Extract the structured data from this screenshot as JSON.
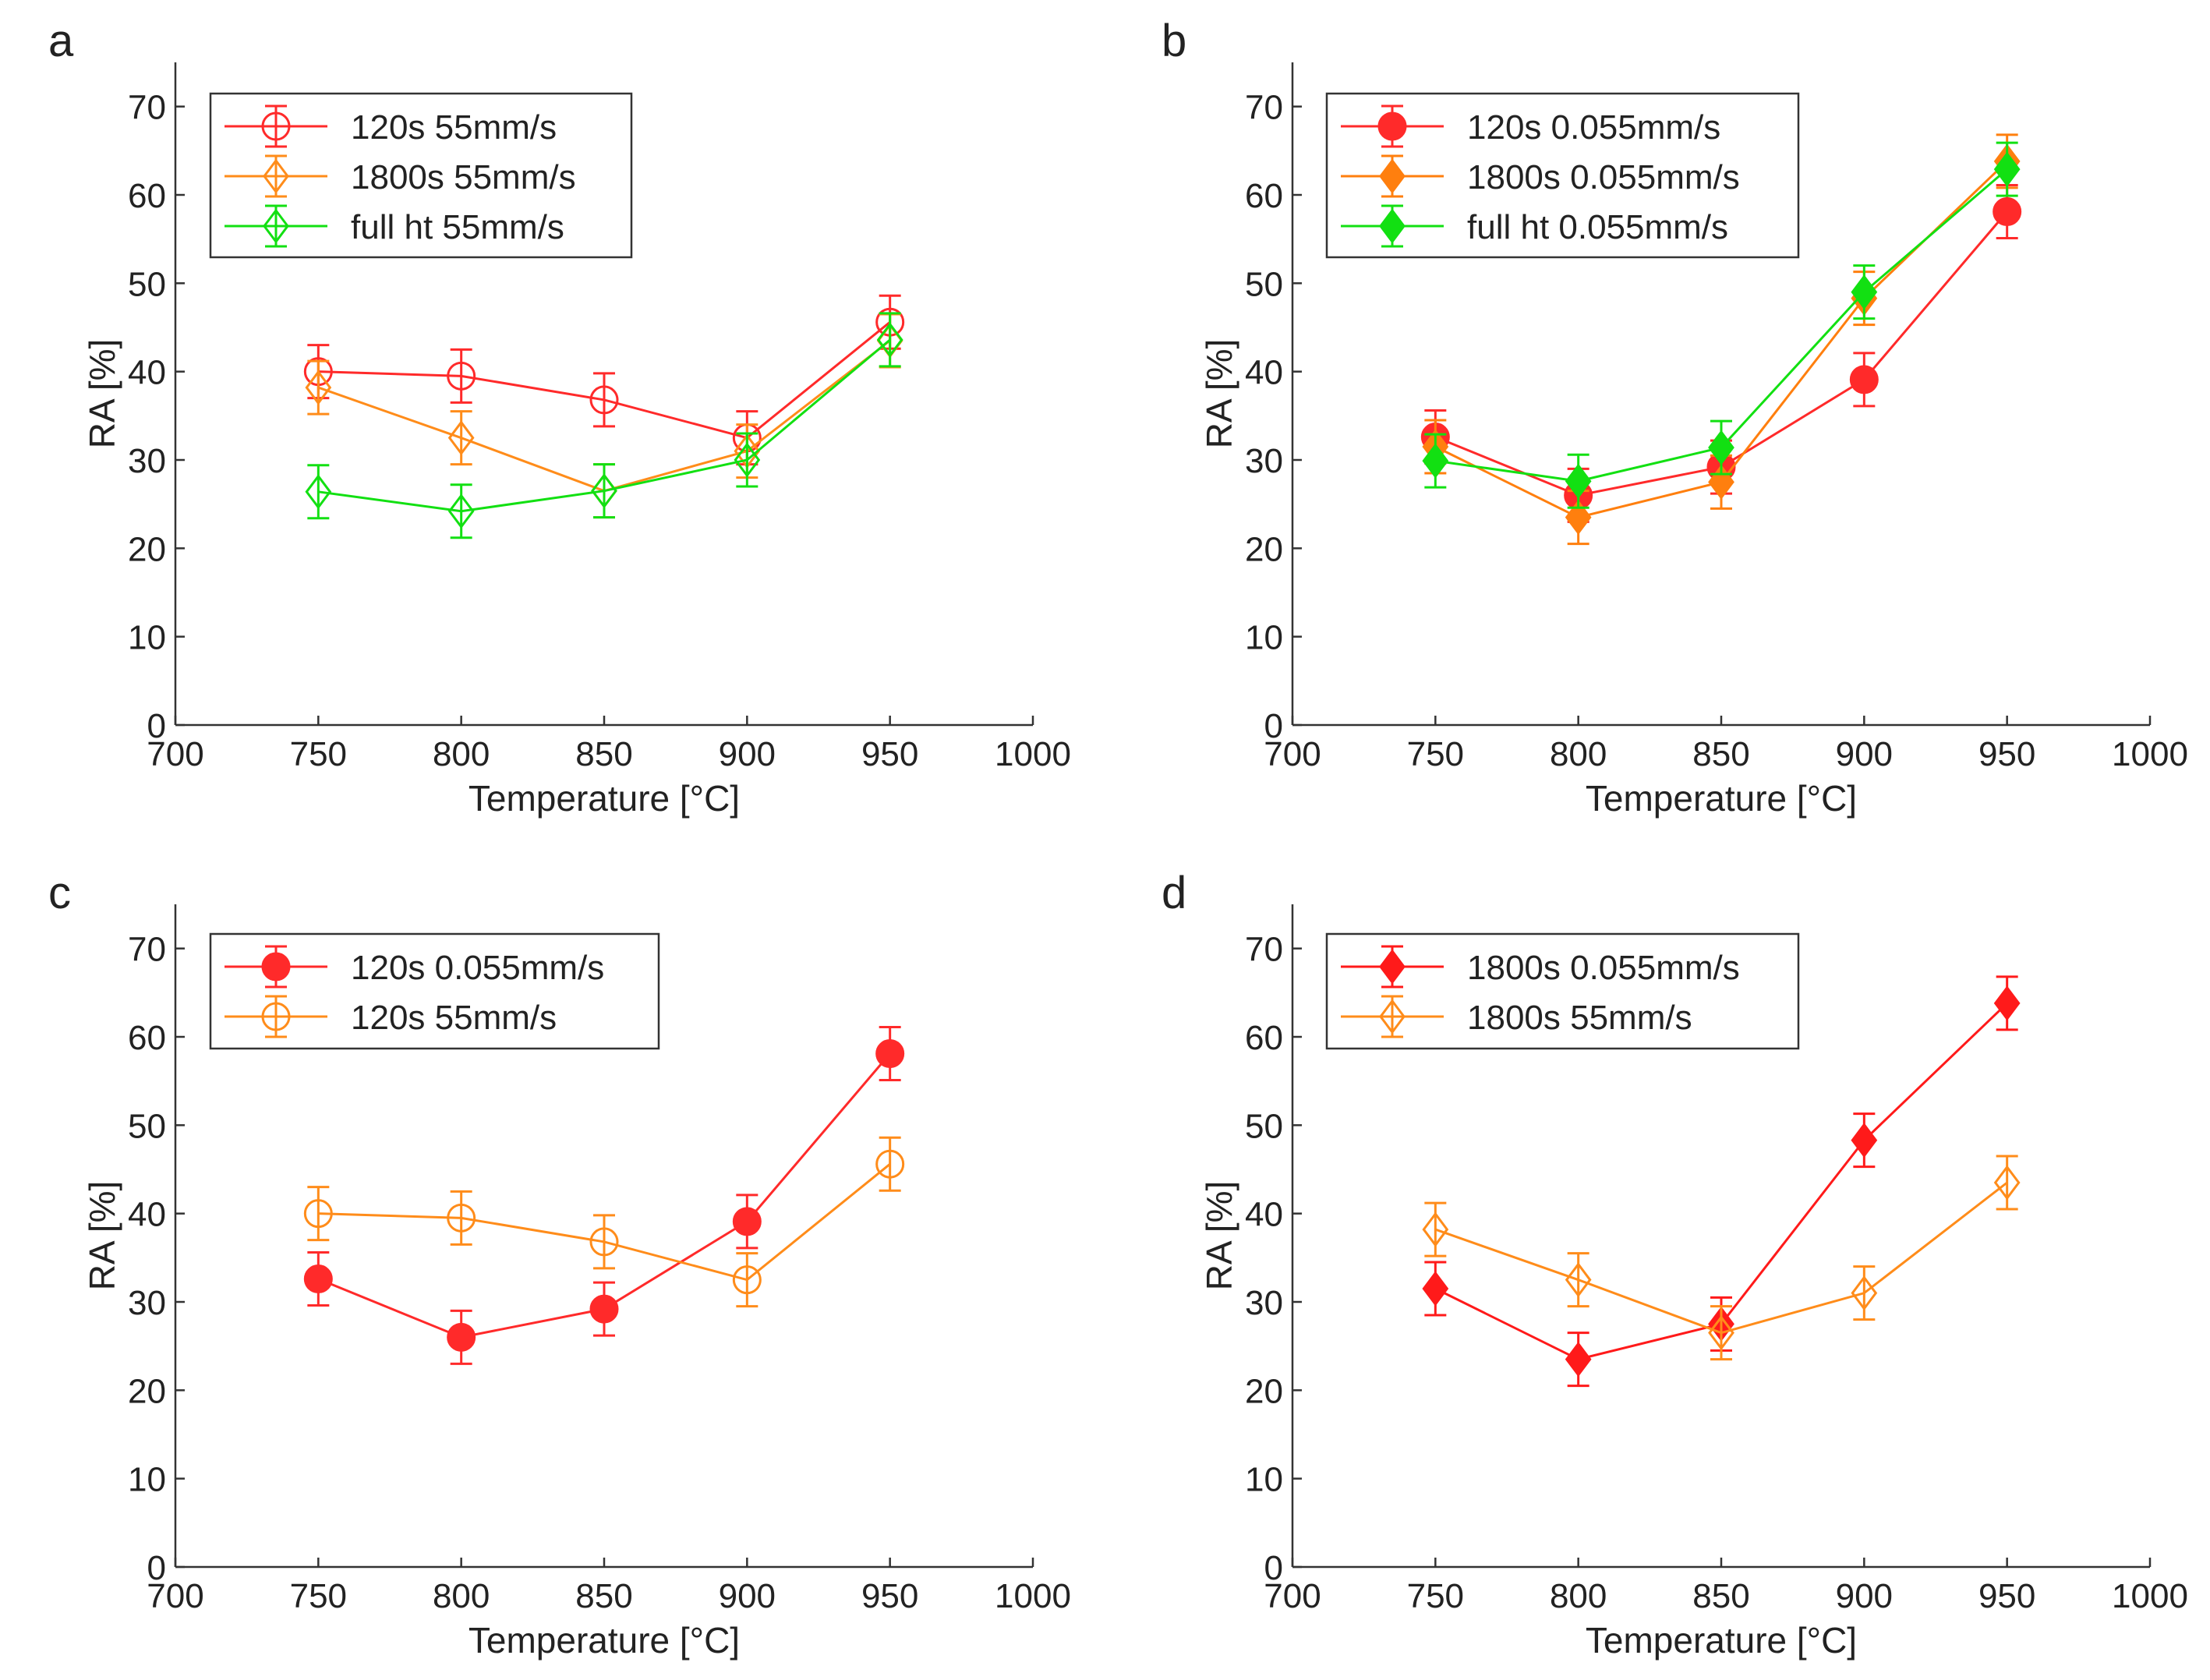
{
  "chart_data": [
    {
      "panel": "a",
      "type": "line",
      "xlabel": "Temperature [°C]",
      "ylabel": "RA [%]",
      "xlim": [
        700,
        1000
      ],
      "ylim": [
        0,
        75
      ],
      "xticks": [
        700,
        750,
        800,
        850,
        900,
        950,
        1000
      ],
      "yticks": [
        0,
        10,
        20,
        30,
        40,
        50,
        60,
        70
      ],
      "x": [
        750,
        800,
        850,
        900,
        950
      ],
      "series": [
        {
          "name": "120s 55mm/s",
          "color": "#ff2a2a",
          "marker": "circle",
          "filled": false,
          "values": [
            40,
            39.5,
            36.8,
            32.5,
            45.6
          ],
          "err": [
            3,
            3,
            3,
            3,
            3
          ]
        },
        {
          "name": "1800s 55mm/s",
          "color": "#ff8c1a",
          "marker": "diamond",
          "filled": false,
          "values": [
            38.2,
            32.5,
            26.5,
            31,
            43.5
          ],
          "err": [
            3,
            3,
            3,
            3,
            3
          ]
        },
        {
          "name": "full ht 55mm/s",
          "color": "#12e012",
          "marker": "diamond",
          "filled": false,
          "values": [
            26.4,
            24.2,
            26.5,
            30,
            43.6
          ],
          "err": [
            3,
            3,
            3,
            3,
            3
          ]
        }
      ]
    },
    {
      "panel": "b",
      "type": "line",
      "xlabel": "Temperature [°C]",
      "ylabel": "RA [%]",
      "xlim": [
        700,
        1000
      ],
      "ylim": [
        0,
        75
      ],
      "xticks": [
        700,
        750,
        800,
        850,
        900,
        950,
        1000
      ],
      "yticks": [
        0,
        10,
        20,
        30,
        40,
        50,
        60,
        70
      ],
      "x": [
        750,
        800,
        850,
        900,
        950
      ],
      "series": [
        {
          "name": "120s 0.055mm/s",
          "color": "#ff2a2a",
          "marker": "circle",
          "filled": true,
          "values": [
            32.6,
            26,
            29.2,
            39.1,
            58.1
          ],
          "err": [
            3,
            3,
            3,
            3,
            3
          ]
        },
        {
          "name": "1800s 0.055mm/s",
          "color": "#ff7f0e",
          "marker": "diamond",
          "filled": true,
          "values": [
            31.5,
            23.5,
            27.5,
            48.3,
            63.8
          ],
          "err": [
            3,
            3,
            3,
            3,
            3
          ]
        },
        {
          "name": "full ht 0.055mm/s",
          "color": "#12e012",
          "marker": "diamond",
          "filled": true,
          "values": [
            29.9,
            27.6,
            31.4,
            49,
            62.9
          ],
          "err": [
            3,
            3,
            3,
            3,
            3
          ]
        }
      ]
    },
    {
      "panel": "c",
      "type": "line",
      "xlabel": "Temperature [°C]",
      "ylabel": "RA [%]",
      "xlim": [
        700,
        1000
      ],
      "ylim": [
        0,
        75
      ],
      "xticks": [
        700,
        750,
        800,
        850,
        900,
        950,
        1000
      ],
      "yticks": [
        0,
        10,
        20,
        30,
        40,
        50,
        60,
        70
      ],
      "x": [
        750,
        800,
        850,
        900,
        950
      ],
      "series": [
        {
          "name": "120s 0.055mm/s",
          "color": "#ff2a2a",
          "marker": "circle",
          "filled": true,
          "values": [
            32.6,
            26,
            29.2,
            39.1,
            58.1
          ],
          "err": [
            3,
            3,
            3,
            3,
            3
          ]
        },
        {
          "name": "120s 55mm/s",
          "color": "#ff8c1a",
          "marker": "circle",
          "filled": false,
          "values": [
            40,
            39.5,
            36.8,
            32.5,
            45.6
          ],
          "err": [
            3,
            3,
            3,
            3,
            3
          ]
        }
      ]
    },
    {
      "panel": "d",
      "type": "line",
      "xlabel": "Temperature [°C]",
      "ylabel": "RA [%]",
      "xlim": [
        700,
        1000
      ],
      "ylim": [
        0,
        75
      ],
      "xticks": [
        700,
        750,
        800,
        850,
        900,
        950,
        1000
      ],
      "yticks": [
        0,
        10,
        20,
        30,
        40,
        50,
        60,
        70
      ],
      "x": [
        750,
        800,
        850,
        900,
        950
      ],
      "series": [
        {
          "name": "1800s 0.055mm/s",
          "color": "#ff1a1a",
          "marker": "diamond",
          "filled": true,
          "values": [
            31.5,
            23.5,
            27.5,
            48.3,
            63.8
          ],
          "err": [
            3,
            3,
            3,
            3,
            3
          ]
        },
        {
          "name": "1800s 55mm/s",
          "color": "#ff8c1a",
          "marker": "diamond",
          "filled": false,
          "values": [
            38.2,
            32.5,
            26.5,
            31,
            43.5
          ],
          "err": [
            3,
            3,
            3,
            3,
            3
          ]
        }
      ]
    }
  ]
}
